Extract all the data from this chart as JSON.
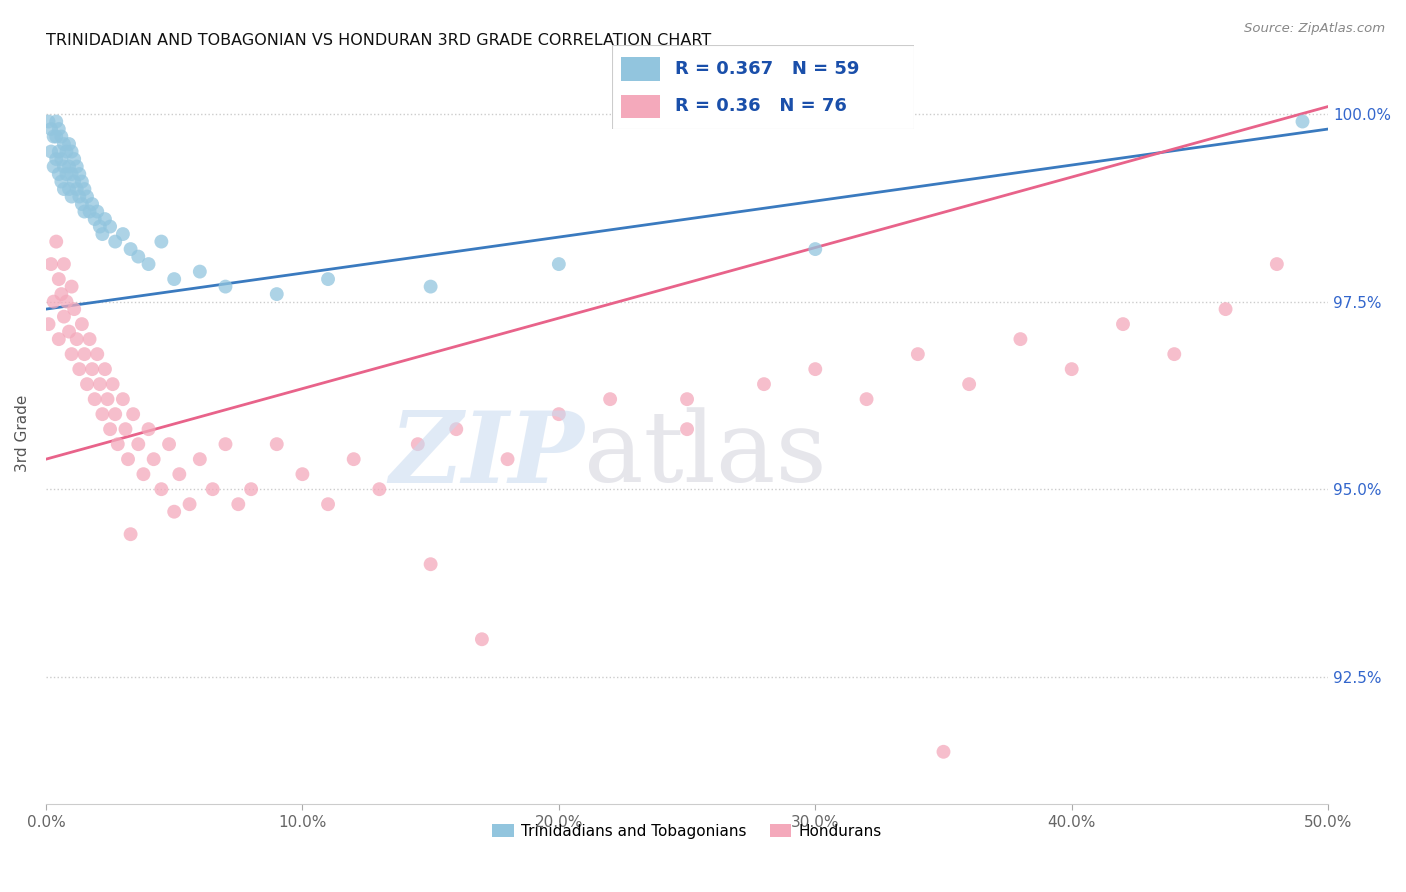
{
  "title": "TRINIDADIAN AND TOBAGONIAN VS HONDURAN 3RD GRADE CORRELATION CHART",
  "source": "Source: ZipAtlas.com",
  "ylabel": "3rd Grade",
  "xlim": [
    0.0,
    0.5
  ],
  "ylim": [
    0.908,
    1.007
  ],
  "xticks": [
    0.0,
    0.1,
    0.2,
    0.3,
    0.4,
    0.5
  ],
  "xtick_labels": [
    "0.0%",
    "10.0%",
    "20.0%",
    "30.0%",
    "40.0%",
    "50.0%"
  ],
  "yticks": [
    0.925,
    0.95,
    0.975,
    1.0
  ],
  "ytick_labels": [
    "92.5%",
    "95.0%",
    "97.5%",
    "100.0%"
  ],
  "blue_R": 0.367,
  "blue_N": 59,
  "pink_R": 0.36,
  "pink_N": 76,
  "blue_color": "#92c5de",
  "pink_color": "#f4a9bb",
  "blue_line_color": "#3a7abf",
  "pink_line_color": "#e8638a",
  "legend_blue_label": "Trinidadians and Tobagonians",
  "legend_pink_label": "Hondurans",
  "blue_line_x0": 0.0,
  "blue_line_y0": 0.974,
  "blue_line_x1": 0.5,
  "blue_line_y1": 0.998,
  "pink_line_x0": 0.0,
  "pink_line_y0": 0.954,
  "pink_line_x1": 0.5,
  "pink_line_y1": 1.001,
  "blue_points_x": [
    0.001,
    0.002,
    0.002,
    0.003,
    0.003,
    0.004,
    0.004,
    0.004,
    0.005,
    0.005,
    0.005,
    0.006,
    0.006,
    0.006,
    0.007,
    0.007,
    0.007,
    0.008,
    0.008,
    0.009,
    0.009,
    0.009,
    0.01,
    0.01,
    0.01,
    0.011,
    0.011,
    0.012,
    0.012,
    0.013,
    0.013,
    0.014,
    0.014,
    0.015,
    0.015,
    0.016,
    0.017,
    0.018,
    0.019,
    0.02,
    0.021,
    0.022,
    0.023,
    0.025,
    0.027,
    0.03,
    0.033,
    0.036,
    0.04,
    0.045,
    0.05,
    0.06,
    0.07,
    0.09,
    0.11,
    0.15,
    0.2,
    0.3,
    0.49
  ],
  "blue_points_y": [
    0.999,
    0.998,
    0.995,
    0.997,
    0.993,
    0.999,
    0.997,
    0.994,
    0.998,
    0.995,
    0.992,
    0.997,
    0.994,
    0.991,
    0.996,
    0.993,
    0.99,
    0.995,
    0.992,
    0.996,
    0.993,
    0.99,
    0.995,
    0.992,
    0.989,
    0.994,
    0.991,
    0.993,
    0.99,
    0.992,
    0.989,
    0.991,
    0.988,
    0.99,
    0.987,
    0.989,
    0.987,
    0.988,
    0.986,
    0.987,
    0.985,
    0.984,
    0.986,
    0.985,
    0.983,
    0.984,
    0.982,
    0.981,
    0.98,
    0.983,
    0.978,
    0.979,
    0.977,
    0.976,
    0.978,
    0.977,
    0.98,
    0.982,
    0.999
  ],
  "pink_points_x": [
    0.001,
    0.002,
    0.003,
    0.004,
    0.005,
    0.005,
    0.006,
    0.007,
    0.007,
    0.008,
    0.009,
    0.01,
    0.01,
    0.011,
    0.012,
    0.013,
    0.014,
    0.015,
    0.016,
    0.017,
    0.018,
    0.019,
    0.02,
    0.021,
    0.022,
    0.023,
    0.024,
    0.025,
    0.026,
    0.027,
    0.028,
    0.03,
    0.031,
    0.032,
    0.034,
    0.036,
    0.038,
    0.04,
    0.042,
    0.045,
    0.048,
    0.052,
    0.056,
    0.06,
    0.065,
    0.07,
    0.075,
    0.08,
    0.09,
    0.1,
    0.11,
    0.12,
    0.13,
    0.145,
    0.16,
    0.18,
    0.2,
    0.22,
    0.25,
    0.28,
    0.3,
    0.32,
    0.34,
    0.36,
    0.38,
    0.4,
    0.42,
    0.44,
    0.46,
    0.48,
    0.05,
    0.033,
    0.15,
    0.25,
    0.17,
    0.35
  ],
  "pink_points_y": [
    0.972,
    0.98,
    0.975,
    0.983,
    0.97,
    0.978,
    0.976,
    0.973,
    0.98,
    0.975,
    0.971,
    0.977,
    0.968,
    0.974,
    0.97,
    0.966,
    0.972,
    0.968,
    0.964,
    0.97,
    0.966,
    0.962,
    0.968,
    0.964,
    0.96,
    0.966,
    0.962,
    0.958,
    0.964,
    0.96,
    0.956,
    0.962,
    0.958,
    0.954,
    0.96,
    0.956,
    0.952,
    0.958,
    0.954,
    0.95,
    0.956,
    0.952,
    0.948,
    0.954,
    0.95,
    0.956,
    0.948,
    0.95,
    0.956,
    0.952,
    0.948,
    0.954,
    0.95,
    0.956,
    0.958,
    0.954,
    0.96,
    0.962,
    0.958,
    0.964,
    0.966,
    0.962,
    0.968,
    0.964,
    0.97,
    0.966,
    0.972,
    0.968,
    0.974,
    0.98,
    0.947,
    0.944,
    0.94,
    0.962,
    0.93,
    0.915
  ]
}
